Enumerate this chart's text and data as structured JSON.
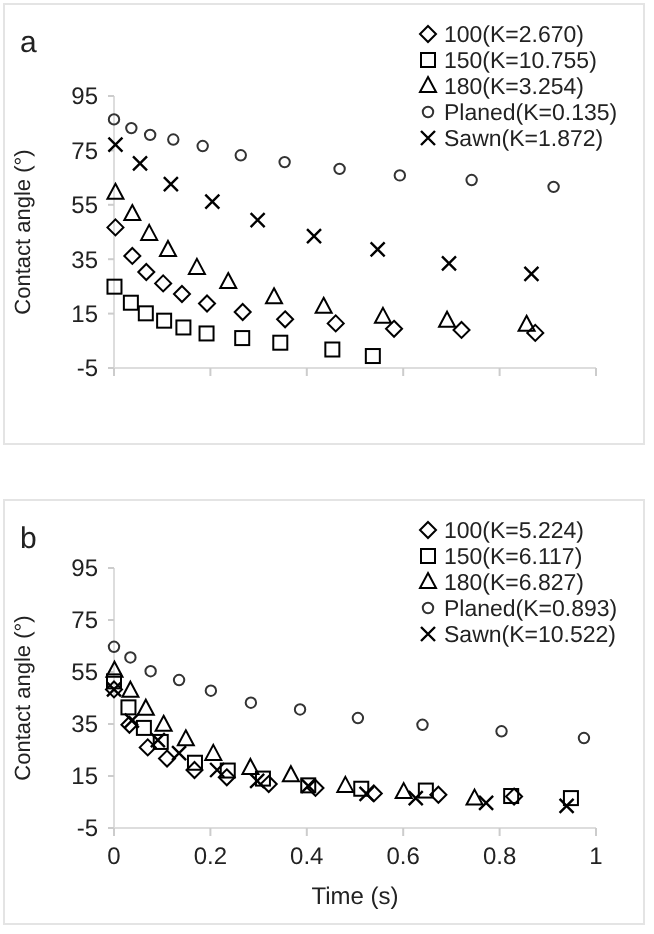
{
  "chart_data": [
    {
      "type": "scatter",
      "title": "a",
      "ylabel": "Contact angle (°)",
      "xlim": [
        0,
        1
      ],
      "xticks": [
        {
          "value": 0,
          "label": null
        },
        {
          "value": 0.2,
          "label": null
        },
        {
          "value": 0.4,
          "label": null
        },
        {
          "value": 0.6,
          "label": null
        },
        {
          "value": 0.8,
          "label": null
        },
        {
          "value": 1,
          "label": null
        }
      ],
      "ylim": [
        -5,
        95
      ],
      "yticks": [
        -5,
        15,
        35,
        55,
        75,
        95
      ],
      "tick_labels": "y",
      "legend": "top right",
      "grid": false,
      "series": [
        {
          "name": "100(K=2.670)",
          "color": "#000000",
          "marker": "diamond",
          "x": [
            0.003,
            0.038,
            0.067,
            0.102,
            0.141,
            0.193,
            0.267,
            0.355,
            0.46,
            0.581,
            0.721,
            0.874
          ],
          "values": [
            46.7,
            36.2,
            30.3,
            26.1,
            22.2,
            18.7,
            15.6,
            12.9,
            11.4,
            9.4,
            9,
            7.9
          ]
        },
        {
          "name": "150(K=10.755)",
          "color": "#000000",
          "marker": "square",
          "x": [
            0.001,
            0.035,
            0.066,
            0.104,
            0.144,
            0.192,
            0.266,
            0.345,
            0.453,
            0.537
          ],
          "values": [
            24.9,
            19,
            15.1,
            12.4,
            9.9,
            7.7,
            6,
            4.3,
            1.8,
            -0.6
          ]
        },
        {
          "name": "180(K=3.254)",
          "color": "#000000",
          "marker": "triangle",
          "x": [
            0.003,
            0.038,
            0.073,
            0.112,
            0.172,
            0.237,
            0.332,
            0.435,
            0.558,
            0.691,
            0.856
          ],
          "values": [
            59.4,
            51.6,
            44.3,
            38.4,
            31.8,
            26.6,
            21,
            17.5,
            13.8,
            12.4,
            10.9
          ]
        },
        {
          "name": "Planed(K=0.135)",
          "color": "#333333",
          "marker": "circle",
          "x": [
            0,
            0.036,
            0.075,
            0.123,
            0.184,
            0.263,
            0.354,
            0.468,
            0.593,
            0.742,
            0.912
          ],
          "values": [
            86.4,
            83.2,
            80.7,
            79,
            76.6,
            73.2,
            70.7,
            68.2,
            65.8,
            64.1,
            61.6
          ]
        },
        {
          "name": "Sawn(K=1.872)",
          "color": "#000000",
          "marker": "cross",
          "x": [
            0.003,
            0.054,
            0.118,
            0.204,
            0.298,
            0.415,
            0.547,
            0.695,
            0.866
          ],
          "values": [
            77.1,
            70.2,
            62.6,
            56.2,
            49.4,
            43.5,
            38.6,
            33.5,
            29.6
          ]
        }
      ]
    },
    {
      "type": "scatter",
      "title": "b",
      "xlabel": "Time (s)",
      "ylabel": "Contact angle (°)",
      "xlim": [
        0,
        1
      ],
      "xticks": [
        0,
        0.2,
        0.4,
        0.6,
        0.8,
        1
      ],
      "ylim": [
        -5,
        95
      ],
      "yticks": [
        -5,
        15,
        35,
        55,
        75,
        95
      ],
      "legend": "top right",
      "grid": false,
      "series": [
        {
          "name": "100(K=5.224)",
          "color": "#000000",
          "marker": "diamond",
          "x": [
            0,
            0.032,
            0.07,
            0.11,
            0.167,
            0.234,
            0.321,
            0.418,
            0.539,
            0.673,
            0.83
          ],
          "values": [
            48.3,
            34.7,
            26,
            21.7,
            17.3,
            14.5,
            11.9,
            10.4,
            8.3,
            7.8,
            7.1
          ]
        },
        {
          "name": "150(K=6.117)",
          "color": "#000000",
          "marker": "square",
          "x": [
            0,
            0.03,
            0.062,
            0.097,
            0.168,
            0.236,
            0.309,
            0.403,
            0.513,
            0.647,
            0.824,
            0.948
          ],
          "values": [
            51.4,
            41.4,
            33.5,
            28.1,
            20.1,
            17.1,
            14,
            11.4,
            10.1,
            9.4,
            7.3,
            6.5
          ]
        },
        {
          "name": "180(K=6.827)",
          "color": "#000000",
          "marker": "triangle",
          "x": [
            0.001,
            0.034,
            0.066,
            0.103,
            0.149,
            0.206,
            0.283,
            0.367,
            0.48,
            0.601,
            0.748
          ],
          "values": [
            55.5,
            47.8,
            40.9,
            34.7,
            29.1,
            23.5,
            18.1,
            15.3,
            11.2,
            8.8,
            6.3
          ]
        },
        {
          "name": "Planed(K=0.893)",
          "color": "#333333",
          "marker": "circle",
          "x": [
            0,
            0.034,
            0.076,
            0.135,
            0.201,
            0.284,
            0.386,
            0.506,
            0.64,
            0.804,
            0.975
          ],
          "values": [
            64.7,
            60.6,
            55.3,
            51.9,
            47.8,
            43.2,
            40.6,
            37.3,
            34.7,
            32.2,
            29.6
          ]
        },
        {
          "name": "Sawn(K=10.522)",
          "color": "#000000",
          "marker": "cross",
          "x": [
            0,
            0.037,
            0.091,
            0.135,
            0.214,
            0.297,
            0.403,
            0.524,
            0.626,
            0.772,
            0.939
          ],
          "values": [
            48.3,
            36.3,
            28.8,
            23.8,
            17.3,
            13.1,
            11.2,
            8.1,
            6.5,
            4.7,
            3.5
          ]
        }
      ]
    }
  ]
}
